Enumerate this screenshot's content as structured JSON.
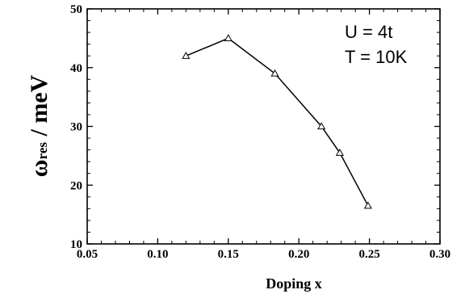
{
  "chart_data": {
    "type": "line",
    "title": "",
    "xlabel": "Doping x",
    "ylabel": {
      "symbol": "ω",
      "subscript": "res",
      "unit": " / meV"
    },
    "xlim": [
      0.05,
      0.3
    ],
    "ylim": [
      10,
      50
    ],
    "xticks": [
      "0.05",
      "0.10",
      "0.15",
      "0.20",
      "0.25",
      "0.30"
    ],
    "yticks": [
      "10",
      "20",
      "30",
      "40",
      "50"
    ],
    "grid": false,
    "marker": "triangle-open",
    "series": [
      {
        "x": [
          0.12,
          0.15,
          0.183,
          0.216,
          0.229,
          0.249
        ],
        "y": [
          42,
          45,
          39,
          30,
          25.5,
          16.5
        ]
      }
    ],
    "annotations": [
      "U = 4t",
      "T = 10K"
    ]
  }
}
